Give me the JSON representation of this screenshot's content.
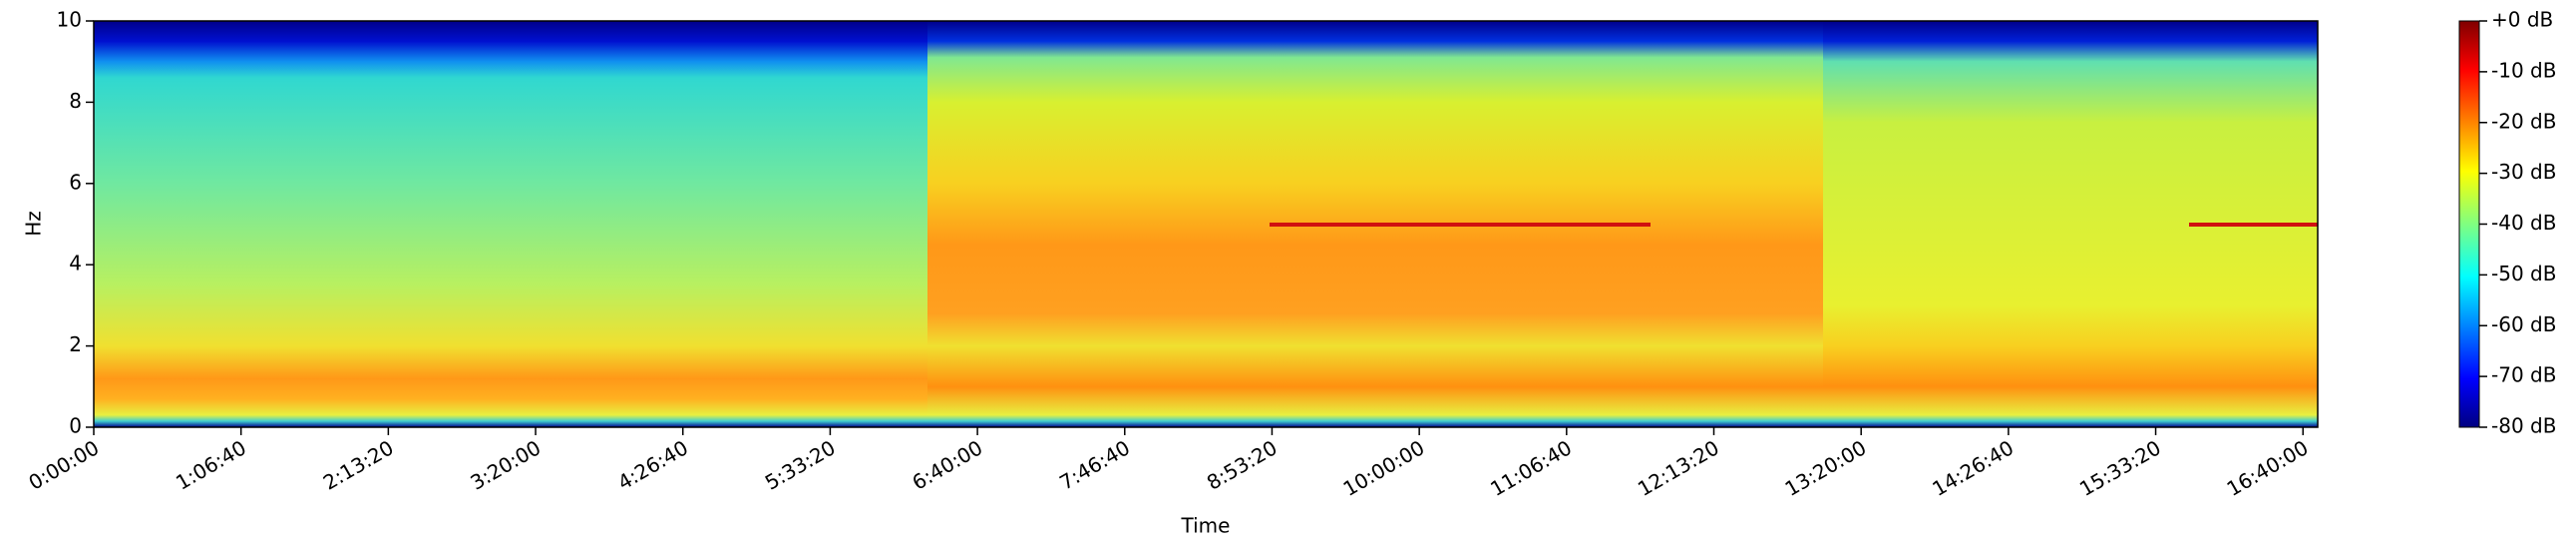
{
  "chart_data": {
    "type": "spectrogram",
    "xlabel": "Time",
    "ylabel": "Hz",
    "xlim": [
      0,
      60400
    ],
    "xticks": [
      {
        "value": 0,
        "label": "0:00:00"
      },
      {
        "value": 4000,
        "label": "1:06:40"
      },
      {
        "value": 8000,
        "label": "2:13:20"
      },
      {
        "value": 12000,
        "label": "3:20:00"
      },
      {
        "value": 16000,
        "label": "4:26:40"
      },
      {
        "value": 20000,
        "label": "5:33:20"
      },
      {
        "value": 24000,
        "label": "6:40:00"
      },
      {
        "value": 28000,
        "label": "7:46:40"
      },
      {
        "value": 32000,
        "label": "8:53:20"
      },
      {
        "value": 36000,
        "label": "10:00:00"
      },
      {
        "value": 40000,
        "label": "11:06:40"
      },
      {
        "value": 44000,
        "label": "12:13:20"
      },
      {
        "value": 48000,
        "label": "13:20:00"
      },
      {
        "value": 52000,
        "label": "14:26:40"
      },
      {
        "value": 56000,
        "label": "15:33:20"
      },
      {
        "value": 60000,
        "label": "16:40:00"
      }
    ],
    "ylim": [
      0,
      10
    ],
    "yticks": [
      0,
      2,
      4,
      6,
      8,
      10
    ],
    "colorbar": {
      "colormap": "jet",
      "lim": [
        -80,
        0
      ],
      "ticks": [
        {
          "value": 0,
          "label": "+0 dB"
        },
        {
          "value": -10,
          "label": "-10 dB"
        },
        {
          "value": -20,
          "label": "-20 dB"
        },
        {
          "value": -30,
          "label": "-30 dB"
        },
        {
          "value": -40,
          "label": "-40 dB"
        },
        {
          "value": -50,
          "label": "-50 dB"
        },
        {
          "value": -60,
          "label": "-60 dB"
        },
        {
          "value": -70,
          "label": "-70 dB"
        },
        {
          "value": -80,
          "label": "-80 dB"
        }
      ]
    }
  }
}
